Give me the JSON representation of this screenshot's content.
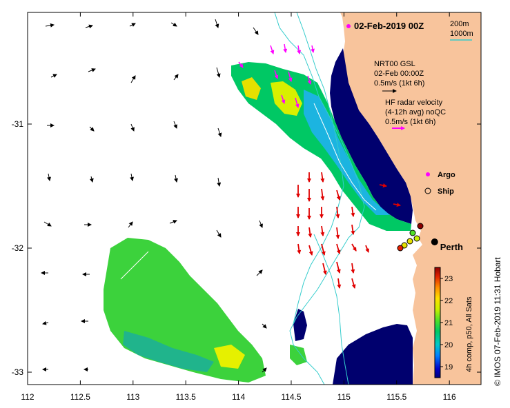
{
  "map": {
    "title": "02-Feb-2019 00Z",
    "contour_legend": {
      "line1": "200m",
      "line2": "1000m",
      "color": "#33cccc"
    },
    "model": {
      "name": "NRT00 GSL",
      "time": "02-Feb 00:00Z",
      "scale": "0.5m/s (1kt 6h)",
      "arrow_color": "#000000"
    },
    "radar": {
      "line1": "HF radar velocity",
      "line2": "(4-12h avg) noQC",
      "scale": "0.5m/s (1kt 6h)",
      "arrow_color": "#ff00ff"
    },
    "markers": {
      "argo_label": "Argo",
      "argo_color": "#ff00ff",
      "ship_label": "Ship"
    },
    "place": {
      "name": "Perth",
      "lon": 115.86,
      "lat": -31.95
    },
    "credit": "© IMOS 07-Feb-2019 11:31 Hobart",
    "land_color": "#f8c49c",
    "lon_range": [
      112,
      116.3
    ],
    "lat_range": [
      -33.1,
      -30.1
    ],
    "x_ticks": [
      "112",
      "112.5",
      "113",
      "113.5",
      "114",
      "114.5",
      "115",
      "115.5",
      "116"
    ],
    "x_tick_values": [
      112,
      112.5,
      113,
      113.5,
      114,
      114.5,
      115,
      115.5,
      116
    ],
    "y_ticks": [
      "-31",
      "-32",
      "-33"
    ],
    "y_tick_values": [
      -31,
      -32,
      -33
    ],
    "colorbar": {
      "label": "4h comp, p50, All Sats",
      "min": 18.5,
      "max": 23.5,
      "ticks": [
        "19",
        "20",
        "21",
        "22",
        "23"
      ],
      "tick_values": [
        19,
        20,
        21,
        22,
        23
      ]
    }
  }
}
